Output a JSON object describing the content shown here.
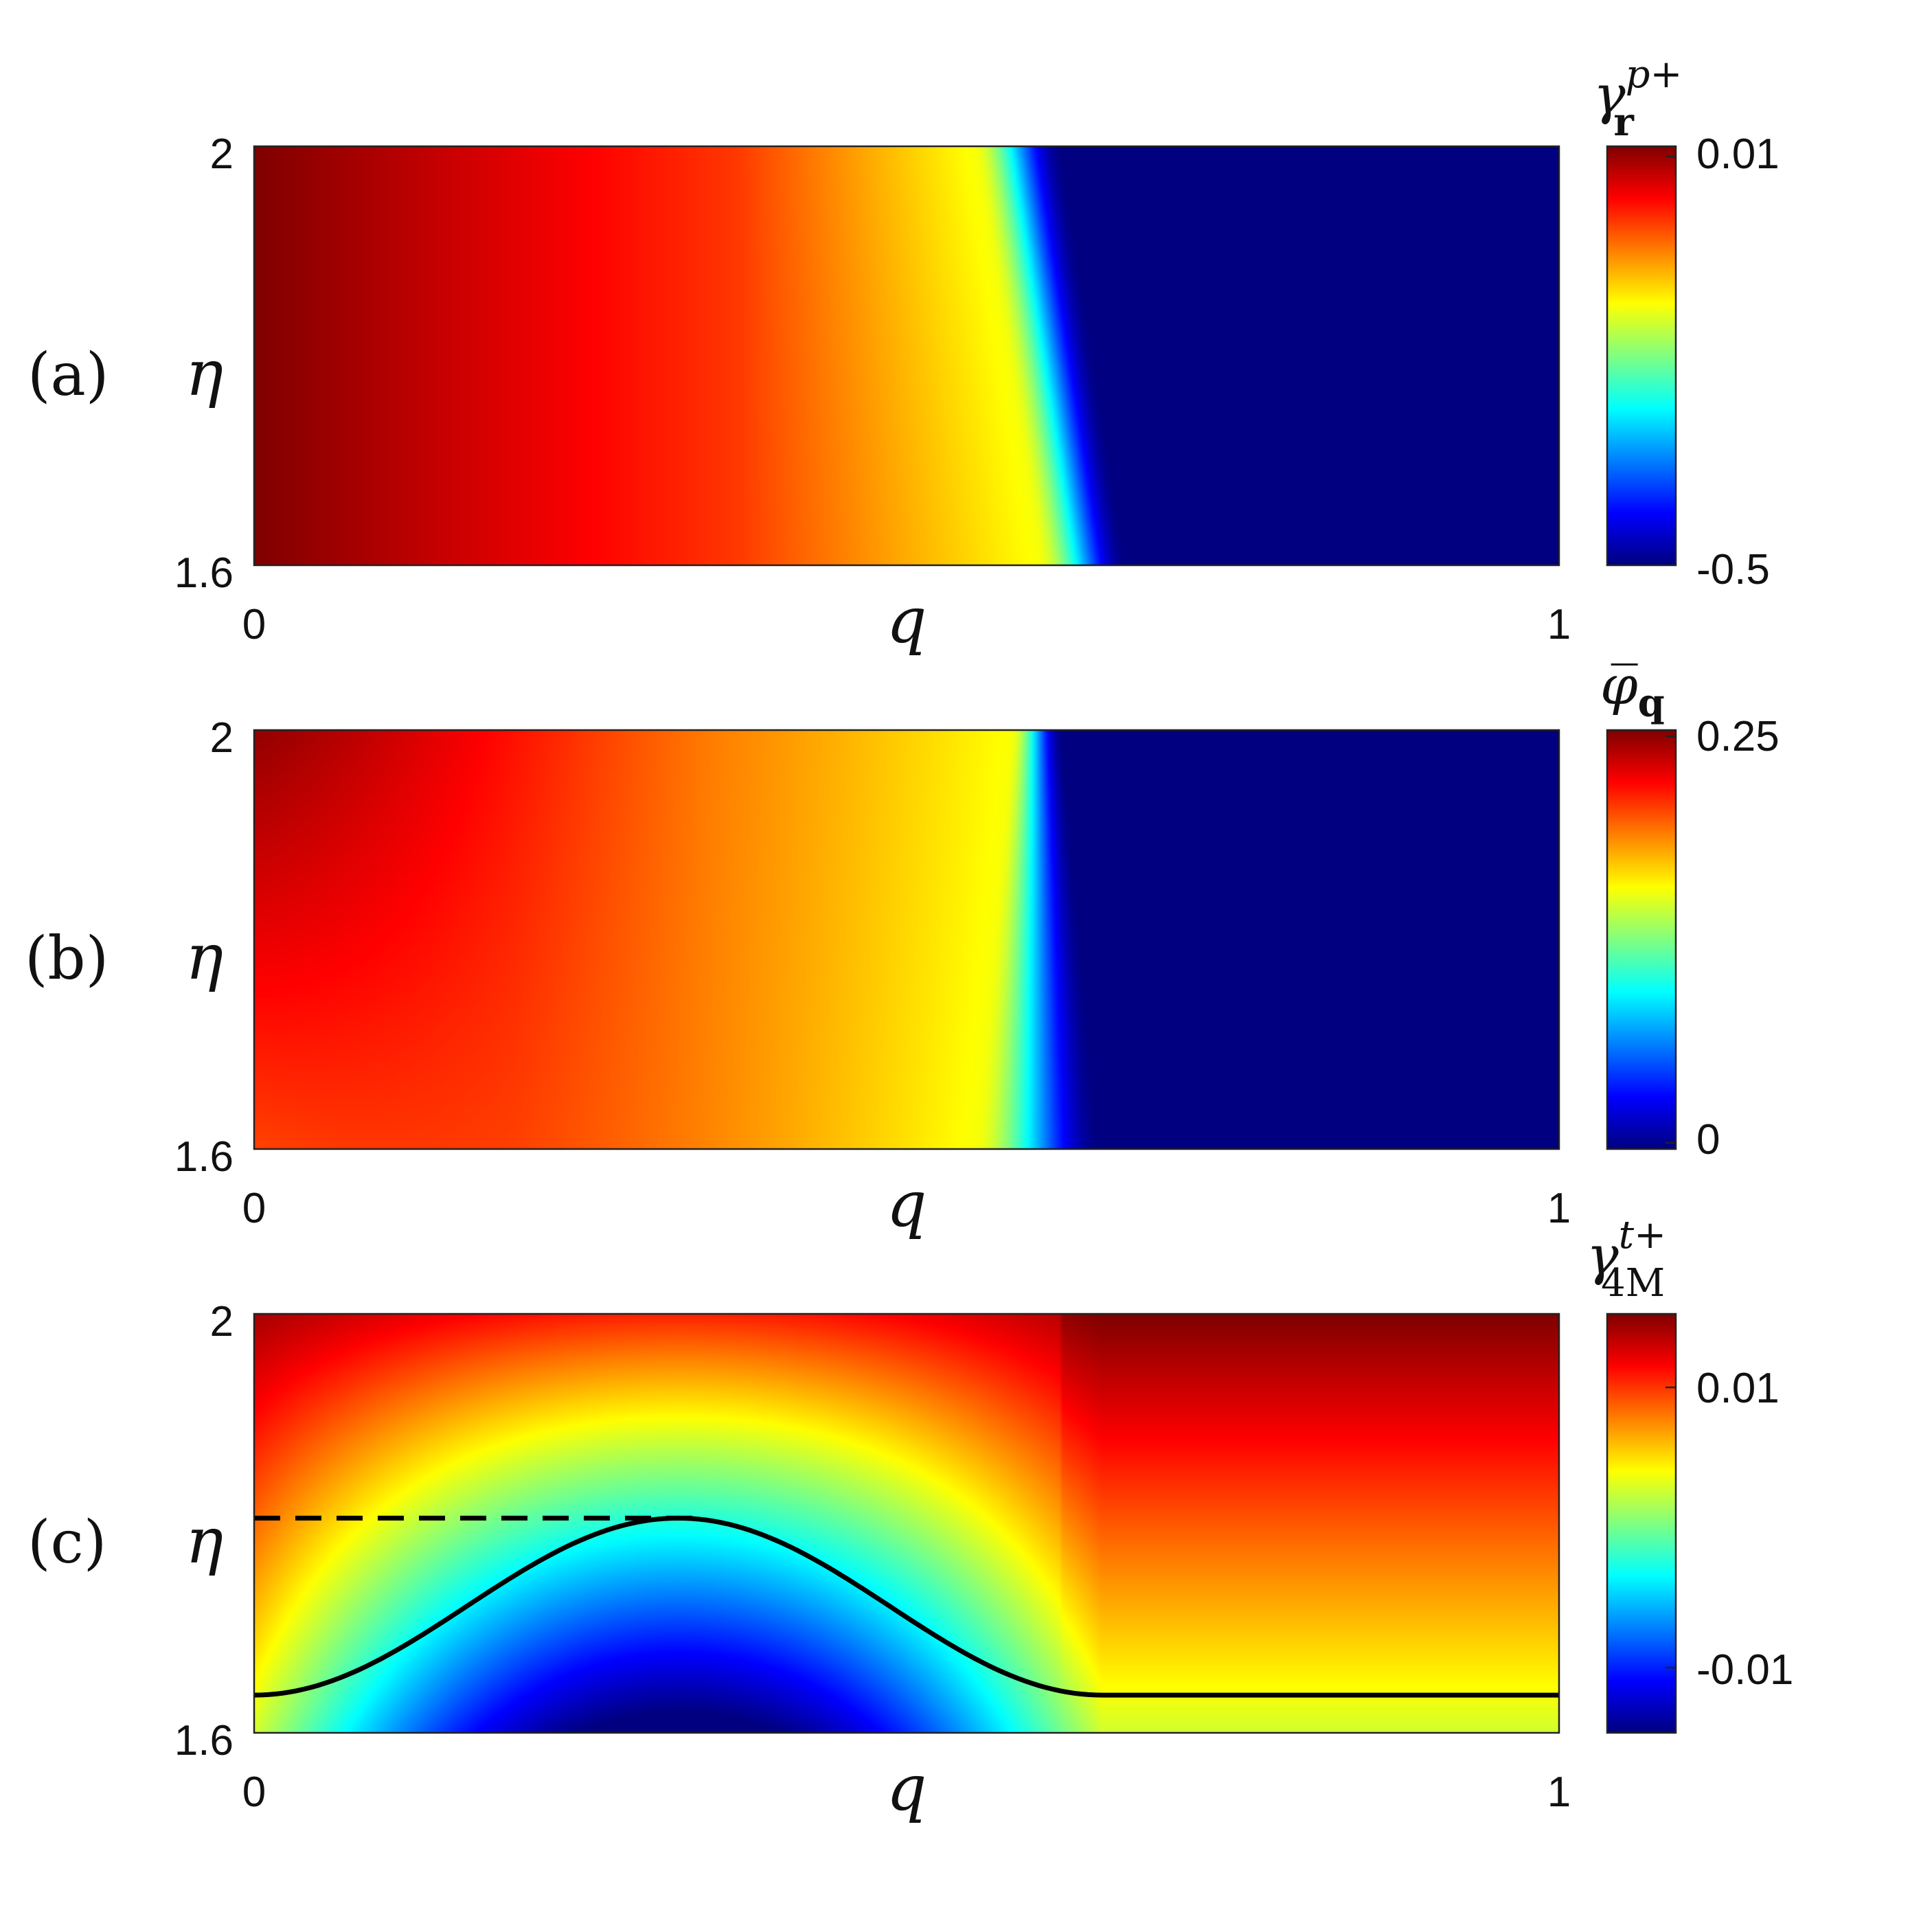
{
  "colormap": [
    "#000080",
    "#0000ff",
    "#0080ff",
    "#00ffff",
    "#80ff80",
    "#ffff00",
    "#ff8000",
    "#ff0000",
    "#800000"
  ],
  "chart_data": [
    {
      "panel_label": "(a)",
      "type": "heatmap",
      "xlabel": "q",
      "ylabel": "η",
      "xlim": [
        0,
        1
      ],
      "ylim": [
        1.6,
        2
      ],
      "x_ticks": [
        "0",
        "1"
      ],
      "y_ticks": [
        "2",
        "1.6"
      ],
      "colorbar": {
        "title": {
          "main": "γ",
          "sup": "p+",
          "sub": "r",
          "sub_style": "bold"
        },
        "tick_labels": [
          "0.01",
          "-0.5"
        ],
        "range": [
          -0.5,
          0.01
        ]
      },
      "field": {
        "description_points": [
          {
            "q": 0.0,
            "value_level": 1.0
          },
          {
            "q": 0.38,
            "value_level": 0.82
          },
          {
            "q": 0.55,
            "value_level": 0.62
          },
          {
            "q": 0.6,
            "value_level": 0.35
          },
          {
            "q": 0.64,
            "value_level": 0.0
          },
          {
            "q": 1.0,
            "value_level": 0.0
          }
        ],
        "front_q_at_top": 0.62,
        "front_q_at_bottom": 0.67
      }
    },
    {
      "panel_label": "(b)",
      "type": "heatmap",
      "xlabel": "q",
      "ylabel": "η",
      "xlim": [
        0,
        1
      ],
      "ylim": [
        1.6,
        2
      ],
      "x_ticks": [
        "0",
        "1"
      ],
      "y_ticks": [
        "2",
        "1.6"
      ],
      "colorbar": {
        "title": {
          "main": "φ̅",
          "sup": "",
          "sub": "q",
          "sub_style": "bold"
        },
        "tick_labels": [
          "0.25",
          "0"
        ],
        "range": [
          0,
          0.25
        ]
      },
      "field": {
        "max_value_at": {
          "q": 0.0,
          "eta": 2.0
        },
        "front_q_at_top": 0.62,
        "front_q_at_bottom": 0.65
      }
    },
    {
      "panel_label": "(c)",
      "type": "heatmap",
      "xlabel": "q",
      "ylabel": "η",
      "xlim": [
        0,
        1
      ],
      "ylim": [
        1.6,
        2
      ],
      "x_ticks": [
        "0",
        "1"
      ],
      "y_ticks": [
        "2",
        "1.6"
      ],
      "colorbar": {
        "title": {
          "main": "γ",
          "sup": "t+",
          "sub": "4M",
          "sub_style": "upright"
        },
        "tick_labels": [
          "0.01",
          "-0.01"
        ],
        "tick_values": [
          0.01,
          -0.01
        ],
        "range": [
          -0.015,
          0.015
        ]
      },
      "curves": [
        {
          "style": "solid",
          "points": [
            [
              0,
              1.636
            ],
            [
              0.05,
              1.648
            ],
            [
              0.1,
              1.677
            ],
            [
              0.15,
              1.714
            ],
            [
              0.2,
              1.752
            ],
            [
              0.25,
              1.782
            ],
            [
              0.3,
              1.8
            ],
            [
              0.34,
              1.805
            ],
            [
              0.38,
              1.8
            ],
            [
              0.43,
              1.782
            ],
            [
              0.48,
              1.752
            ],
            [
              0.53,
              1.714
            ],
            [
              0.58,
              1.677
            ],
            [
              0.62,
              1.648
            ],
            [
              0.65,
              1.636
            ],
            [
              1.0,
              1.636
            ]
          ]
        },
        {
          "style": "dashed",
          "points": [
            [
              0,
              1.805
            ],
            [
              0.34,
              1.805
            ]
          ]
        }
      ]
    }
  ]
}
